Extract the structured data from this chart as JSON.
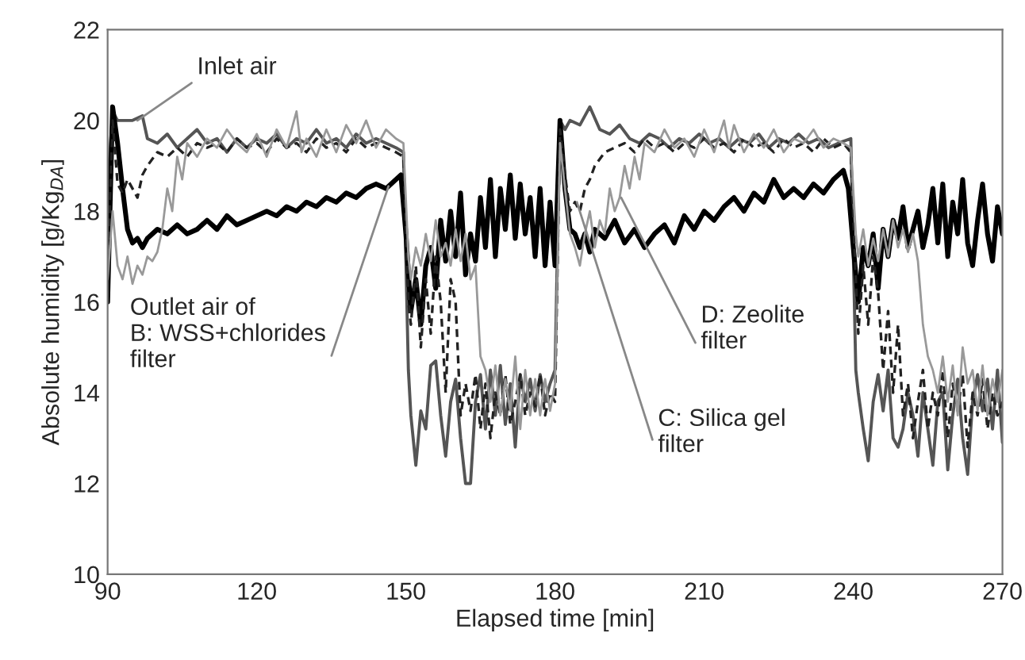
{
  "chart_data": {
    "type": "line",
    "xlabel": "Elapsed time [min]",
    "ylabel": "Absolute humidity [g/Kg$_{DA}$]",
    "xlim": [
      90,
      270
    ],
    "xticks": [
      90,
      120,
      150,
      180,
      210,
      240,
      270
    ],
    "ylim": [
      10,
      22
    ],
    "yticks": [
      10,
      12,
      14,
      16,
      18,
      20,
      22
    ],
    "grid": false,
    "series": [
      {
        "color": "#555555",
        "line_style": "solid",
        "x": [
          90,
          91,
          92,
          95,
          97,
          98,
          100,
          102,
          104,
          106,
          108,
          110,
          112,
          114,
          116,
          118,
          120,
          122,
          124,
          126,
          128,
          130,
          132,
          134,
          136,
          138,
          140,
          142,
          144,
          146,
          148,
          149.5,
          150.5,
          151,
          152,
          153,
          154,
          155,
          156,
          157,
          158,
          159,
          160,
          161,
          162,
          163,
          164,
          165,
          166,
          167,
          168,
          169,
          170,
          171,
          172,
          173,
          174,
          175,
          176,
          177,
          178,
          179,
          180,
          181,
          182,
          183,
          185,
          187,
          189,
          191,
          193,
          195,
          197,
          199,
          201,
          203,
          205,
          207,
          209,
          211,
          213,
          215,
          217,
          219,
          221,
          223,
          225,
          227,
          229,
          231,
          233,
          235,
          237,
          239.5,
          240.5,
          241,
          242,
          243,
          244,
          245,
          246,
          247,
          248,
          249,
          250,
          251,
          252,
          253,
          254,
          255,
          256,
          257,
          258,
          259,
          260,
          261,
          262,
          263,
          264,
          265,
          266,
          267,
          268,
          269,
          270
        ],
        "values": [
          18.5,
          20.2,
          20.0,
          20.0,
          20.1,
          19.6,
          19.5,
          19.7,
          19.4,
          19.6,
          19.8,
          19.5,
          19.6,
          19.3,
          19.6,
          19.4,
          19.6,
          19.5,
          19.7,
          19.4,
          19.6,
          19.5,
          19.8,
          19.5,
          19.6,
          19.4,
          19.7,
          19.5,
          19.6,
          19.5,
          19.4,
          19.3,
          14.5,
          13.5,
          12.4,
          13.6,
          13.2,
          14.6,
          14.7,
          13.5,
          12.6,
          13.8,
          14.3,
          13.0,
          12.0,
          12.0,
          13.8,
          14.4,
          13.2,
          14.5,
          13.5,
          14.6,
          13.3,
          14.2,
          12.8,
          14.4,
          13.8,
          14.3,
          13.6,
          14.4,
          13.8,
          14.2,
          14.5,
          20.0,
          19.8,
          20.0,
          19.9,
          20.3,
          19.8,
          19.7,
          19.9,
          19.6,
          19.5,
          19.7,
          19.6,
          19.4,
          19.6,
          19.5,
          19.7,
          19.5,
          19.6,
          19.4,
          19.6,
          19.5,
          19.7,
          19.4,
          19.6,
          19.5,
          19.7,
          19.5,
          19.6,
          19.4,
          19.5,
          19.6,
          14.5,
          14.0,
          13.2,
          12.5,
          13.8,
          14.4,
          13.6,
          14.5,
          13.0,
          12.8,
          13.2,
          14.0,
          13.5,
          12.6,
          14.0,
          13.2,
          12.4,
          13.8,
          14.0,
          12.3,
          13.5,
          14.3,
          13.0,
          12.2,
          13.8,
          14.4,
          13.6,
          14.3,
          13.2,
          14.5,
          12.9
        ]
      },
      {
        "color": "#000000",
        "line_style": "solid",
        "x": [
          90,
          91,
          92,
          93,
          94,
          95,
          96,
          97,
          98,
          100,
          102,
          104,
          106,
          108,
          110,
          112,
          114,
          116,
          118,
          120,
          122,
          124,
          126,
          128,
          130,
          132,
          134,
          136,
          138,
          140,
          142,
          144,
          146,
          148,
          149,
          150,
          151,
          152,
          153,
          154,
          155,
          156,
          157,
          158,
          159,
          160,
          161,
          162,
          163,
          164,
          165,
          166,
          167,
          168,
          169,
          170,
          171,
          172,
          173,
          174,
          175,
          176,
          177,
          178,
          179,
          180,
          181,
          182,
          183,
          184,
          185,
          186,
          187,
          188,
          190,
          192,
          194,
          196,
          198,
          200,
          202,
          204,
          206,
          208,
          210,
          212,
          214,
          216,
          218,
          220,
          222,
          224,
          226,
          228,
          230,
          232,
          234,
          236,
          238,
          239,
          240,
          241,
          242,
          243,
          244,
          245,
          246,
          247,
          248,
          249,
          250,
          251,
          252,
          253,
          254,
          255,
          256,
          257,
          258,
          259,
          260,
          261,
          262,
          263,
          264,
          265,
          266,
          267,
          268,
          269,
          270
        ],
        "values": [
          16.0,
          20.3,
          19.5,
          18.5,
          17.6,
          17.3,
          17.4,
          17.2,
          17.4,
          17.6,
          17.5,
          17.7,
          17.5,
          17.6,
          17.8,
          17.6,
          17.9,
          17.7,
          17.8,
          17.9,
          18.0,
          17.9,
          18.1,
          18.0,
          18.2,
          18.1,
          18.3,
          18.2,
          18.4,
          18.3,
          18.5,
          18.6,
          18.5,
          18.7,
          18.8,
          17.5,
          15.8,
          16.5,
          15.5,
          16.8,
          17.2,
          16.3,
          17.8,
          16.9,
          18.0,
          17.0,
          18.4,
          16.6,
          17.5,
          16.9,
          18.3,
          17.2,
          18.7,
          17.0,
          18.5,
          17.6,
          18.8,
          17.4,
          18.6,
          17.5,
          18.3,
          17.0,
          18.5,
          16.8,
          18.2,
          16.8,
          20.0,
          18.5,
          17.6,
          17.5,
          17.2,
          17.5,
          17.1,
          17.6,
          17.4,
          17.8,
          17.3,
          17.6,
          17.2,
          17.5,
          17.7,
          17.3,
          17.9,
          17.6,
          18.0,
          17.8,
          18.1,
          18.3,
          18.0,
          18.4,
          18.2,
          18.7,
          18.3,
          18.5,
          18.3,
          18.6,
          18.4,
          18.7,
          18.9,
          18.5,
          17.2,
          16.0,
          17.2,
          16.8,
          17.5,
          16.3,
          17.6,
          17.0,
          17.8,
          17.4,
          18.1,
          17.2,
          17.6,
          18.0,
          17.2,
          17.7,
          18.5,
          17.3,
          18.6,
          17.0,
          18.2,
          17.5,
          18.7,
          17.3,
          16.8,
          17.8,
          18.6,
          17.5,
          16.9,
          18.1,
          17.5
        ]
      },
      {
        "color": "#222222",
        "line_style": "dashed",
        "x": [
          90,
          91,
          92,
          93,
          94,
          95,
          96,
          97,
          98,
          100,
          102,
          104,
          106,
          108,
          110,
          112,
          114,
          116,
          118,
          120,
          122,
          124,
          126,
          128,
          130,
          132,
          134,
          136,
          138,
          140,
          142,
          144,
          146,
          148,
          149.5,
          150.5,
          151,
          152,
          153,
          154,
          155,
          156,
          157,
          158,
          159,
          160,
          161,
          162,
          163,
          164,
          165,
          166,
          167,
          168,
          169,
          170,
          171,
          172,
          173,
          174,
          175,
          176,
          177,
          178,
          179,
          180,
          181,
          182,
          183,
          184,
          185,
          186,
          187,
          188,
          190,
          192,
          194,
          196,
          198,
          200,
          202,
          204,
          206,
          208,
          210,
          212,
          214,
          216,
          218,
          220,
          222,
          224,
          226,
          228,
          230,
          232,
          234,
          236,
          238,
          239.5,
          240.5,
          241,
          242,
          243,
          244,
          245,
          246,
          247,
          248,
          249,
          250,
          251,
          252,
          253,
          254,
          255,
          256,
          257,
          258,
          259,
          260,
          261,
          262,
          263,
          264,
          265,
          266,
          267,
          268,
          269,
          270
        ],
        "values": [
          16.5,
          20.0,
          18.6,
          18.4,
          18.7,
          18.5,
          18.3,
          18.8,
          19.0,
          19.3,
          19.2,
          19.4,
          19.2,
          19.5,
          19.4,
          19.5,
          19.3,
          19.6,
          19.4,
          19.5,
          19.3,
          19.6,
          19.4,
          19.5,
          19.3,
          19.6,
          19.4,
          19.5,
          19.3,
          19.6,
          19.4,
          19.5,
          19.4,
          19.3,
          19.2,
          16.0,
          15.5,
          16.8,
          15.0,
          16.5,
          15.3,
          17.0,
          16.0,
          14.0,
          16.5,
          16.0,
          13.5,
          14.2,
          13.6,
          14.4,
          13.2,
          14.2,
          13.0,
          14.0,
          13.5,
          14.4,
          13.3,
          13.8,
          14.4,
          13.5,
          14.0,
          13.7,
          14.4,
          13.5,
          14.0,
          13.8,
          19.8,
          18.8,
          18.0,
          18.2,
          18.0,
          18.5,
          18.7,
          19.0,
          19.3,
          19.4,
          19.5,
          19.3,
          19.6,
          19.4,
          19.5,
          19.3,
          19.5,
          19.4,
          19.6,
          19.4,
          19.5,
          19.3,
          19.6,
          19.4,
          19.5,
          19.3,
          19.6,
          19.4,
          19.5,
          19.3,
          19.6,
          19.4,
          19.5,
          19.3,
          16.5,
          15.3,
          16.8,
          15.5,
          17.0,
          16.2,
          14.5,
          15.8,
          14.0,
          15.5,
          13.5,
          14.2,
          13.0,
          13.8,
          14.5,
          13.2,
          14.0,
          13.5,
          14.5,
          13.0,
          14.2,
          13.6,
          14.4,
          12.8,
          14.0,
          13.5,
          14.3,
          13.2,
          14.0,
          13.5,
          13.8
        ]
      },
      {
        "color": "#999999",
        "line_style": "solid",
        "x": [
          90,
          91,
          92,
          93,
          94,
          95,
          96,
          97,
          98,
          99,
          100,
          101,
          102,
          103,
          104,
          105,
          106,
          108,
          110,
          112,
          114,
          116,
          118,
          120,
          122,
          124,
          126,
          128,
          129,
          130,
          132,
          134,
          136,
          138,
          140,
          142,
          144,
          146,
          148,
          149.5,
          150.5,
          151,
          152,
          153,
          154,
          155,
          156,
          157,
          158,
          159,
          160,
          161,
          162,
          163,
          164,
          165,
          166,
          167,
          168,
          169,
          170,
          171,
          172,
          173,
          174,
          175,
          176,
          177,
          178,
          179,
          180,
          181,
          182,
          183,
          184,
          185,
          186,
          187,
          188,
          189,
          190,
          191,
          192,
          193,
          194,
          195,
          196,
          197,
          198,
          200,
          202,
          204,
          206,
          208,
          210,
          212,
          214,
          215,
          216,
          218,
          220,
          222,
          224,
          226,
          228,
          230,
          232,
          234,
          236,
          238,
          239.5,
          240.5,
          241,
          242,
          243,
          244,
          245,
          246,
          247,
          248,
          249,
          250,
          251,
          252,
          253,
          254,
          255,
          256,
          257,
          258,
          259,
          260,
          261,
          262,
          263,
          264,
          265,
          266,
          267,
          268,
          269,
          270
        ],
        "values": [
          16.5,
          18.0,
          16.8,
          16.5,
          17.0,
          16.4,
          16.8,
          16.6,
          17.0,
          16.9,
          17.1,
          17.6,
          18.5,
          18.0,
          19.2,
          18.7,
          19.5,
          19.2,
          19.6,
          19.4,
          19.8,
          19.5,
          19.3,
          19.7,
          19.2,
          19.8,
          19.4,
          20.2,
          19.3,
          19.6,
          19.2,
          19.8,
          19.3,
          19.9,
          19.5,
          20.0,
          19.4,
          19.8,
          19.6,
          19.5,
          17.0,
          16.5,
          17.2,
          16.8,
          17.5,
          16.9,
          17.8,
          17.0,
          17.3,
          16.8,
          17.6,
          16.9,
          17.5,
          16.5,
          16.8,
          14.8,
          14.5,
          13.8,
          14.6,
          13.5,
          14.3,
          13.6,
          14.8,
          13.2,
          14.5,
          13.5,
          14.3,
          13.5,
          14.3,
          13.6,
          14.2,
          19.5,
          18.5,
          17.5,
          17.2,
          16.8,
          17.5,
          18.0,
          17.2,
          17.8,
          17.5,
          18.5,
          18.0,
          18.3,
          19.0,
          18.5,
          19.2,
          18.7,
          19.5,
          19.3,
          19.8,
          19.4,
          19.6,
          19.2,
          19.8,
          19.3,
          20.0,
          19.4,
          19.9,
          19.3,
          19.7,
          19.4,
          19.8,
          19.3,
          19.6,
          19.5,
          19.8,
          19.4,
          19.6,
          19.5,
          19.4,
          17.5,
          17.0,
          17.6,
          16.8,
          17.4,
          16.9,
          17.6,
          17.0,
          17.8,
          17.2,
          17.6,
          17.1,
          17.5,
          16.9,
          15.5,
          14.8,
          14.5,
          14.0,
          14.8,
          13.8,
          14.6,
          13.5,
          15.0,
          14.2,
          14.5,
          13.6,
          14.6,
          13.5,
          14.3,
          13.8,
          14.5
        ]
      }
    ],
    "annotations": [
      {
        "text": "Inlet air",
        "x": 96,
        "y": 20.0
      },
      {
        "text": "Outlet air of\nB: WSS+chlorides\nfilter",
        "x": 146.5,
        "y": 18.55
      },
      {
        "text": "D: Zeolite\nfilter",
        "x": 193.3,
        "y": 18.3
      },
      {
        "text": "C: Silica gel\nfilter",
        "x": 184.4,
        "y": 18.2
      }
    ]
  }
}
